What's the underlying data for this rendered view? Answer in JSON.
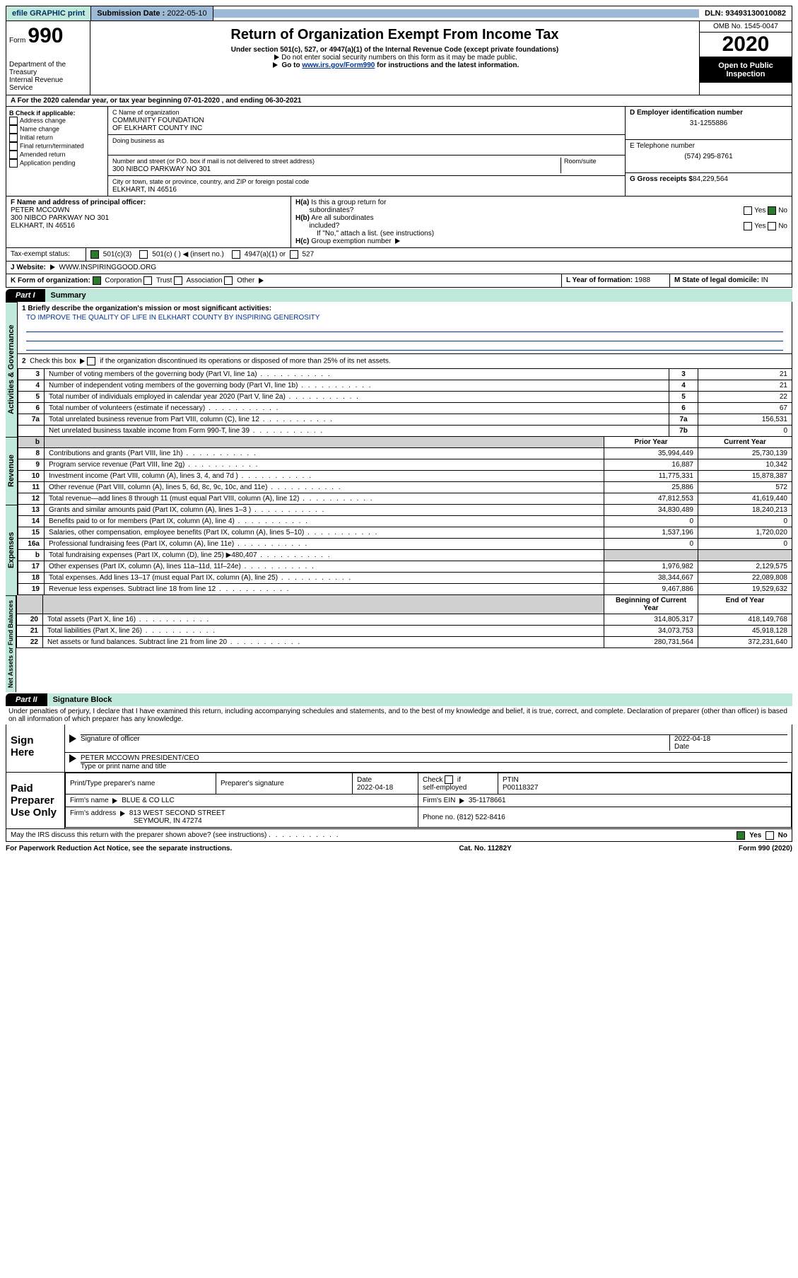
{
  "topbar": {
    "efile": "efile GRAPHIC print",
    "sub_lbl": "Submission Date :",
    "sub_val": "2022-05-10",
    "dln": "DLN: 93493130010082"
  },
  "header": {
    "form_lbl": "Form",
    "form_no": "990",
    "dept": "Department of the Treasury\nInternal Revenue Service",
    "title": "Return of Organization Exempt From Income Tax",
    "sub1": "Under section 501(c), 527, or 4947(a)(1) of the Internal Revenue Code (except private foundations)",
    "sub2": "Do not enter social security numbers on this form as it may be made public.",
    "sub3_pre": "Go to ",
    "sub3_link": "www.irs.gov/Form990",
    "sub3_post": " for instructions and the latest information.",
    "omb": "OMB No. 1545-0047",
    "year": "2020",
    "open": "Open to Public Inspection"
  },
  "rowA": "A For the 2020 calendar year, or tax year beginning 07-01-2020    , and ending 06-30-2021",
  "boxB": {
    "hdr": "B Check if applicable:",
    "o1": "Address change",
    "o2": "Name change",
    "o3": "Initial return",
    "o4": "Final return/terminated",
    "o5": "Amended return",
    "o6": "Application pending"
  },
  "boxC": {
    "lbl": "C Name of organization",
    "name": "COMMUNITY FOUNDATION\nOF ELKHART COUNTY INC",
    "dba": "Doing business as",
    "addr_lbl": "Number and street (or P.O. box if mail is not delivered to street address)",
    "addr": "300 NIBCO PARKWAY NO 301",
    "room": "Room/suite",
    "city_lbl": "City or town, state or province, country, and ZIP or foreign postal code",
    "city": "ELKHART, IN  46516"
  },
  "boxD": {
    "lbl": "D Employer identification number",
    "val": "31-1255886"
  },
  "boxE": {
    "lbl": "E Telephone number",
    "val": "(574) 295-8761"
  },
  "boxG": {
    "lbl": "G Gross receipts $",
    "val": "84,229,564"
  },
  "boxF": {
    "lbl": "F  Name and address of principal officer:",
    "name": "PETER MCCOWN",
    "addr": "300 NIBCO PARKWAY NO 301\nELKHART, IN  46516"
  },
  "boxH": {
    "a": "H(a)  Is this a group return for subordinates?",
    "b": "H(b)  Are all subordinates included?",
    "b2": "If \"No,\" attach a list. (see instructions)",
    "c": "H(c)  Group exemption number"
  },
  "taxex": {
    "lbl": "Tax-exempt status:",
    "o1": "501(c)(3)",
    "o2": "501(c) (  )",
    "o2b": "(insert no.)",
    "o3": "4947(a)(1) or",
    "o4": "527"
  },
  "boxJ": {
    "lbl": "J   Website:",
    "val": "WWW.INSPIRINGGOOD.ORG"
  },
  "boxK": {
    "lbl": "K Form of organization:",
    "o1": "Corporation",
    "o2": "Trust",
    "o3": "Association",
    "o4": "Other"
  },
  "boxL": {
    "lbl": "L Year of formation:",
    "val": "1988"
  },
  "boxM": {
    "lbl": "M State of legal domicile:",
    "val": "IN"
  },
  "part1": {
    "tab": "Part I",
    "title": "Summary"
  },
  "gov": {
    "l1_lbl": "1  Briefly describe the organization's mission or most significant activities:",
    "l1_val": "TO IMPROVE THE QUALITY OF LIFE IN ELKHART COUNTY BY INSPIRING GENEROSITY",
    "l2": "2   Check this box      if the organization discontinued its operations or disposed of more than 25% of its net assets.",
    "rows": [
      {
        "n": "3",
        "t": "Number of voting members of the governing body (Part VI, line 1a)",
        "b": "3",
        "v": "21"
      },
      {
        "n": "4",
        "t": "Number of independent voting members of the governing body (Part VI, line 1b)",
        "b": "4",
        "v": "21"
      },
      {
        "n": "5",
        "t": "Total number of individuals employed in calendar year 2020 (Part V, line 2a)",
        "b": "5",
        "v": "22"
      },
      {
        "n": "6",
        "t": "Total number of volunteers (estimate if necessary)",
        "b": "6",
        "v": "67"
      },
      {
        "n": "7a",
        "t": "Total unrelated business revenue from Part VIII, column (C), line 12",
        "b": "7a",
        "v": "156,531"
      },
      {
        "n": "",
        "t": "Net unrelated business taxable income from Form 990-T, line 39",
        "b": "7b",
        "v": "0"
      }
    ]
  },
  "colheads": {
    "py": "Prior Year",
    "cy": "Current Year",
    "boy": "Beginning of Current Year",
    "eoy": "End of Year"
  },
  "rev": [
    {
      "n": "8",
      "t": "Contributions and grants (Part VIII, line 1h)",
      "p": "35,994,449",
      "c": "25,730,139"
    },
    {
      "n": "9",
      "t": "Program service revenue (Part VIII, line 2g)",
      "p": "16,887",
      "c": "10,342"
    },
    {
      "n": "10",
      "t": "Investment income (Part VIII, column (A), lines 3, 4, and 7d )",
      "p": "11,775,331",
      "c": "15,878,387"
    },
    {
      "n": "11",
      "t": "Other revenue (Part VIII, column (A), lines 5, 6d, 8c, 9c, 10c, and 11e)",
      "p": "25,886",
      "c": "572"
    },
    {
      "n": "12",
      "t": "Total revenue—add lines 8 through 11 (must equal Part VIII, column (A), line 12)",
      "p": "47,812,553",
      "c": "41,619,440"
    }
  ],
  "exp": [
    {
      "n": "13",
      "t": "Grants and similar amounts paid (Part IX, column (A), lines 1–3 )",
      "p": "34,830,489",
      "c": "18,240,213"
    },
    {
      "n": "14",
      "t": "Benefits paid to or for members (Part IX, column (A), line 4)",
      "p": "0",
      "c": "0"
    },
    {
      "n": "15",
      "t": "Salaries, other compensation, employee benefits (Part IX, column (A), lines 5–10)",
      "p": "1,537,196",
      "c": "1,720,020"
    },
    {
      "n": "16a",
      "t": "Professional fundraising fees (Part IX, column (A), line 11e)",
      "p": "0",
      "c": "0"
    },
    {
      "n": "b",
      "t": "Total fundraising expenses (Part IX, column (D), line 25) ▶480,407",
      "p": "shade",
      "c": "shade"
    },
    {
      "n": "17",
      "t": "Other expenses (Part IX, column (A), lines 11a–11d, 11f–24e)",
      "p": "1,976,982",
      "c": "2,129,575"
    },
    {
      "n": "18",
      "t": "Total expenses. Add lines 13–17 (must equal Part IX, column (A), line 25)",
      "p": "38,344,667",
      "c": "22,089,808"
    },
    {
      "n": "19",
      "t": "Revenue less expenses. Subtract line 18 from line 12",
      "p": "9,467,886",
      "c": "19,529,632"
    }
  ],
  "net": [
    {
      "n": "20",
      "t": "Total assets (Part X, line 16)",
      "p": "314,805,317",
      "c": "418,149,768"
    },
    {
      "n": "21",
      "t": "Total liabilities (Part X, line 26)",
      "p": "34,073,753",
      "c": "45,918,128"
    },
    {
      "n": "22",
      "t": "Net assets or fund balances. Subtract line 21 from line 20",
      "p": "280,731,564",
      "c": "372,231,640"
    }
  ],
  "vlabels": {
    "gov": "Activities & Governance",
    "rev": "Revenue",
    "exp": "Expenses",
    "net": "Net Assets or Fund Balances"
  },
  "part2": {
    "tab": "Part II",
    "title": "Signature Block"
  },
  "decl": "Under penalties of perjury, I declare that I have examined this return, including accompanying schedules and statements, and to the best of my knowledge and belief, it is true, correct, and complete. Declaration of preparer (other than officer) is based on all information of which preparer has any knowledge.",
  "sign": {
    "here": "Sign Here",
    "sig_of": "Signature of officer",
    "date": "2022-04-18",
    "date_lbl": "Date",
    "name": "PETER MCCOWN  PRESIDENT/CEO",
    "name_lbl": "Type or print name and title"
  },
  "prep": {
    "lbl": "Paid Preparer Use Only",
    "h1": "Print/Type preparer's name",
    "h2": "Preparer's signature",
    "h3": "Date",
    "h3v": "2022-04-18",
    "h4": "Check      if self-employed",
    "h5": "PTIN",
    "h5v": "P00118327",
    "f1": "Firm's name    ",
    "f1v": "BLUE & CO LLC",
    "f2": "Firm's EIN ",
    "f2v": "35-1178661",
    "a1": "Firm's address ",
    "a1v": "813 WEST SECOND STREET",
    "a2": "SEYMOUR, IN  47274",
    "ph": "Phone no.",
    "phv": "(812) 522-8416"
  },
  "discuss": "May the IRS discuss this return with the preparer shown above? (see instructions)",
  "yes": "Yes",
  "no": "No",
  "footer": {
    "l": "For Paperwork Reduction Act Notice, see the separate instructions.",
    "m": "Cat. No. 11282Y",
    "r": "Form 990 (2020)"
  }
}
